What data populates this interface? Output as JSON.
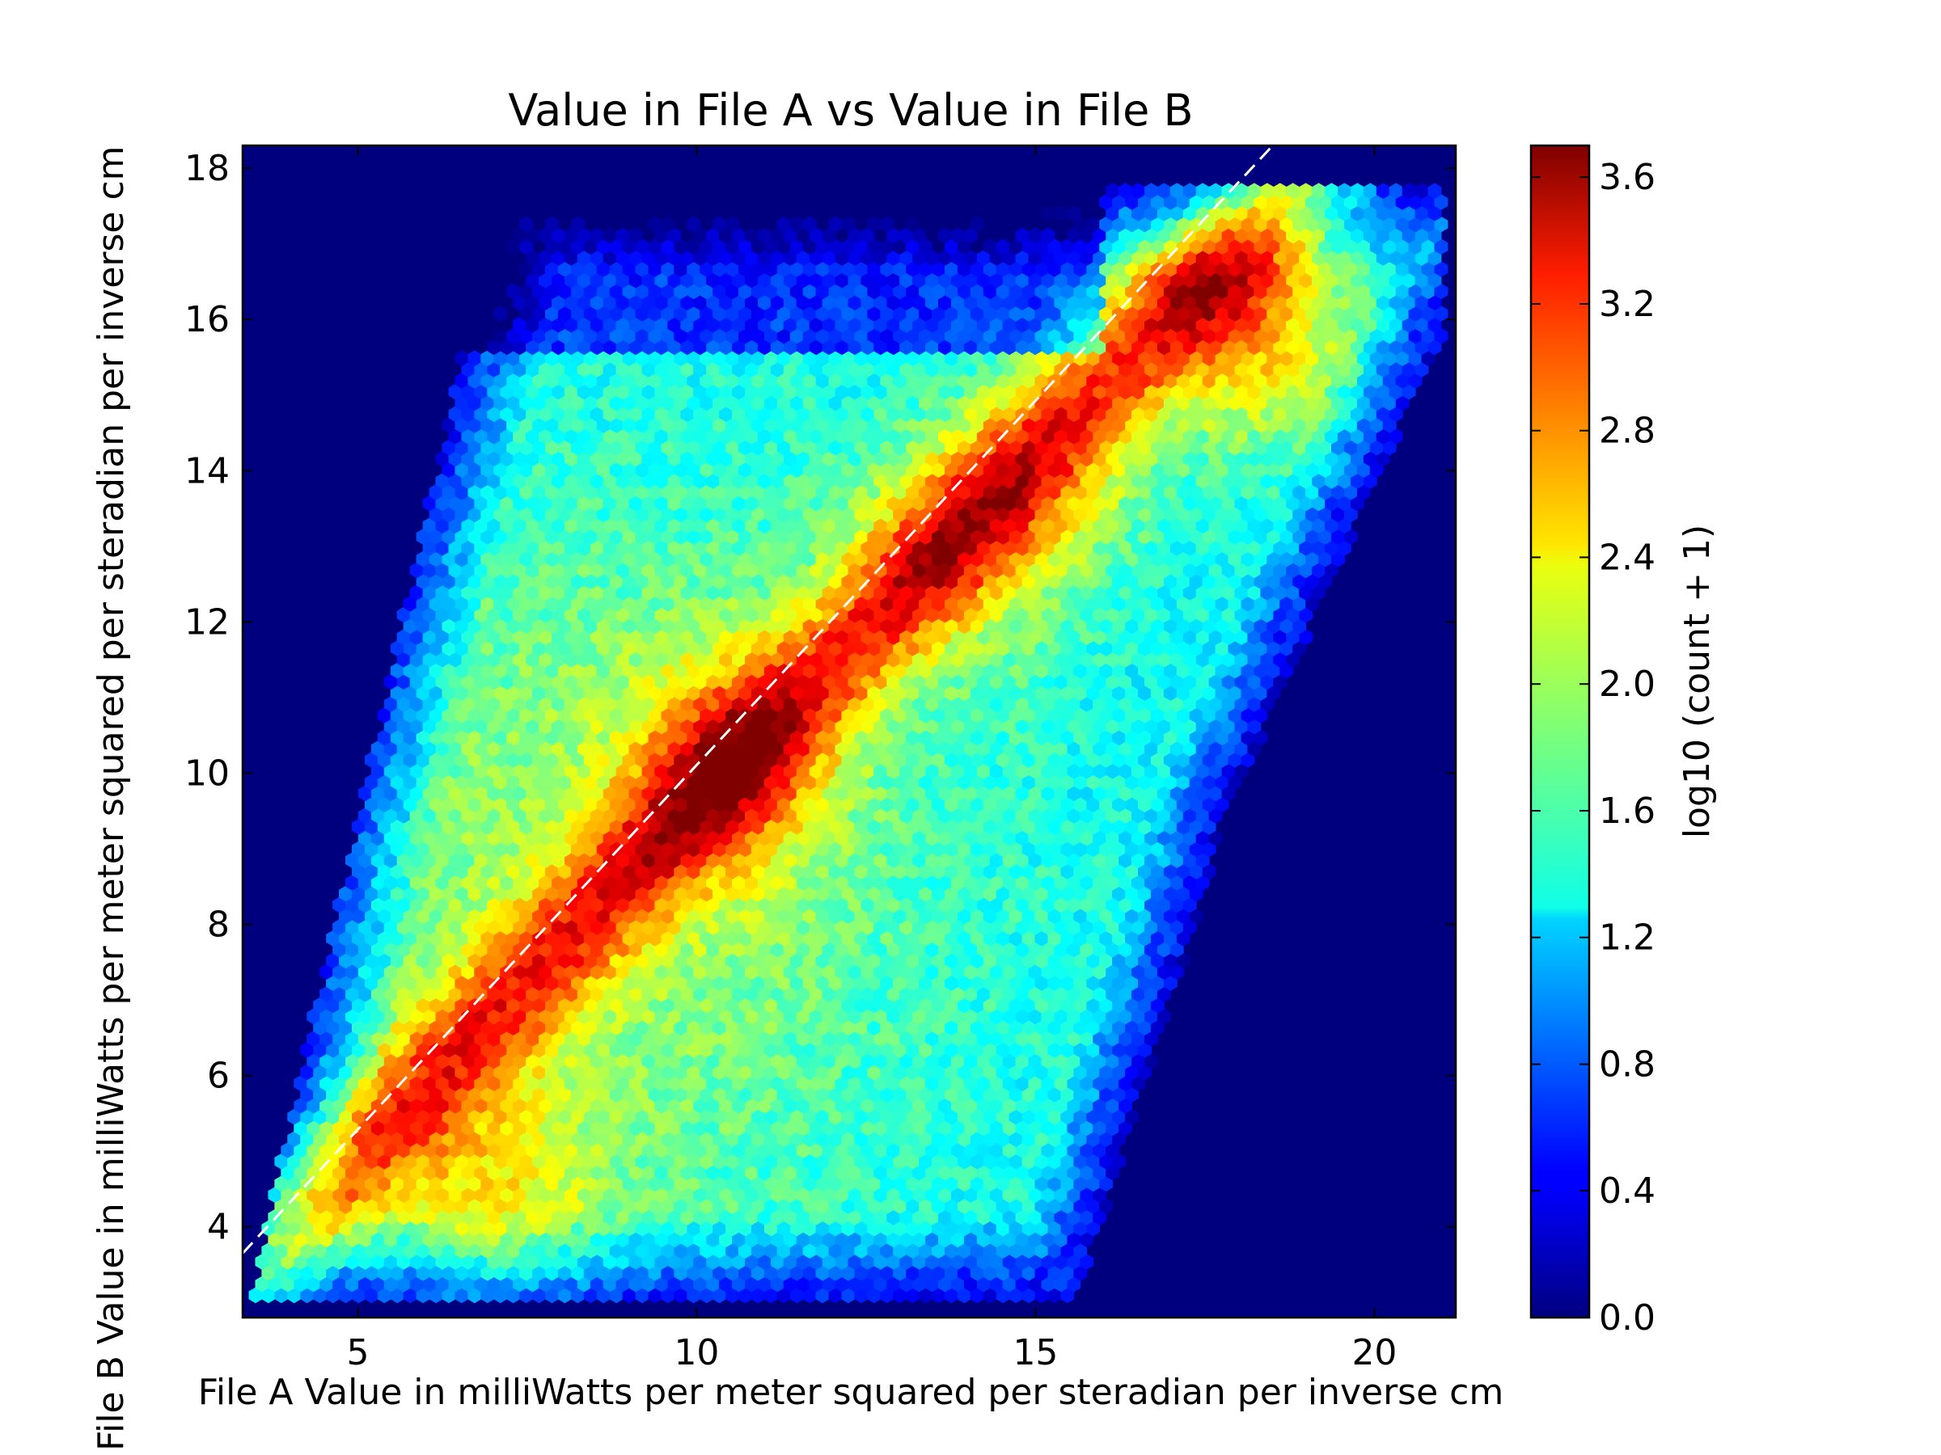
{
  "chart_data": {
    "type": "heatmap",
    "subtype": "hexbin",
    "title": "Value in File A vs Value in File B",
    "xlabel": "File A Value in milliWatts per meter squared per steradian per inverse cm",
    "ylabel": "File B Value in milliWatts per meter squared per steradian per inverse cm",
    "xlim": [
      3.3,
      21.2
    ],
    "ylim": [
      2.8,
      18.3
    ],
    "xticks": [
      "5",
      "10",
      "15",
      "20"
    ],
    "xtick_values": [
      5,
      10,
      15,
      20
    ],
    "yticks": [
      "4",
      "6",
      "8",
      "10",
      "12",
      "14",
      "16",
      "18"
    ],
    "ytick_values": [
      4,
      6,
      8,
      10,
      12,
      14,
      16,
      18
    ],
    "colorscale": "jet",
    "colorbar": {
      "label": "log10 (count + 1)",
      "range": [
        0.0,
        3.7
      ],
      "ticks": [
        "0.0",
        "0.4",
        "0.8",
        "1.2",
        "1.6",
        "2.0",
        "2.4",
        "2.8",
        "3.2",
        "3.6"
      ],
      "tick_values": [
        0.0,
        0.4,
        0.8,
        1.2,
        1.6,
        2.0,
        2.4,
        2.8,
        3.2,
        3.6
      ]
    },
    "reference_line": {
      "style": "dashed",
      "color": "#ffffff",
      "x": [
        3.3,
        18.5
      ],
      "y": [
        3.65,
        18.3
      ]
    },
    "background_color": "#00007f",
    "grid": false,
    "density_peaks": [
      {
        "x": 18.1,
        "y": 16.0,
        "value": 3.7
      },
      {
        "x": 10.5,
        "y": 10.2,
        "value": 3.3
      },
      {
        "x": 7.0,
        "y": 4.4,
        "value": 3.1
      },
      {
        "x": 13.7,
        "y": 12.9,
        "value": 3.1
      },
      {
        "x": 15.3,
        "y": 13.9,
        "value": 3.0
      }
    ]
  }
}
